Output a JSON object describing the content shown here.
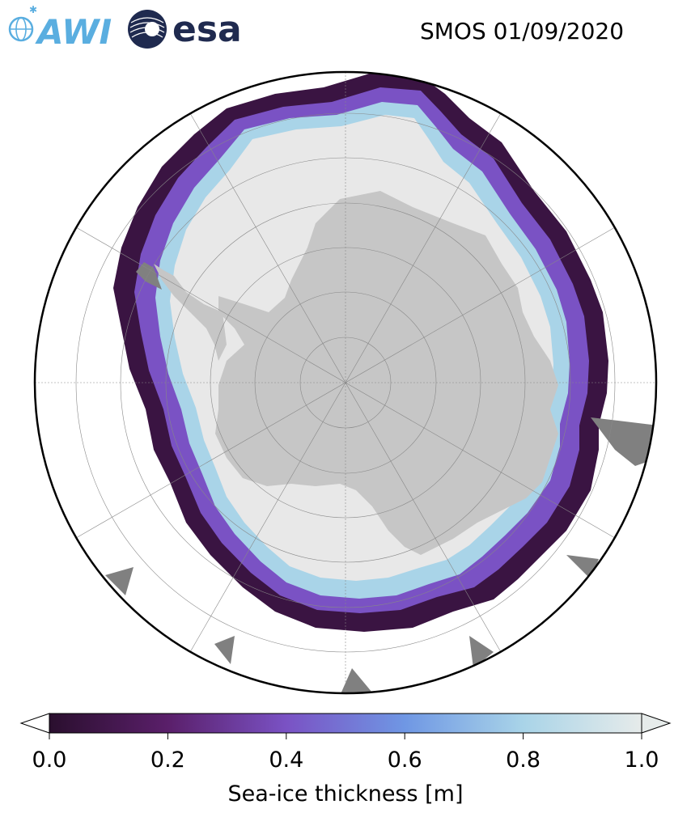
{
  "title": "SMOS 01/09/2020",
  "logos": {
    "awi": {
      "icon": "awi-logo-icon",
      "text": "AWI",
      "color": "#5aaee0"
    },
    "esa": {
      "icon": "esa-logo-icon",
      "text": "esa",
      "color": "#1f2a4f"
    }
  },
  "map": {
    "projection": "south-polar-stereographic",
    "colors": {
      "ocean": "#ffffff",
      "land": "#c6c6c6",
      "ice_shelf_or_land_mask": "#e8e8e8",
      "other_land": "#808080",
      "grid": "#888888",
      "boundary": "#000000"
    }
  },
  "colorbar": {
    "label": "Sea-ice thickness [m]",
    "ticks": [
      "0.0",
      "0.2",
      "0.4",
      "0.6",
      "0.8",
      "1.0"
    ],
    "range": [
      0.0,
      1.0
    ],
    "extend": "both",
    "colormap": [
      {
        "value": 0.0,
        "color": "#2a0f2e"
      },
      {
        "value": 0.2,
        "color": "#5a1f6a"
      },
      {
        "value": 0.4,
        "color": "#7a52c4"
      },
      {
        "value": 0.6,
        "color": "#6f97e4"
      },
      {
        "value": 0.8,
        "color": "#a9d4e8"
      },
      {
        "value": 1.0,
        "color": "#e6ebea"
      }
    ]
  }
}
